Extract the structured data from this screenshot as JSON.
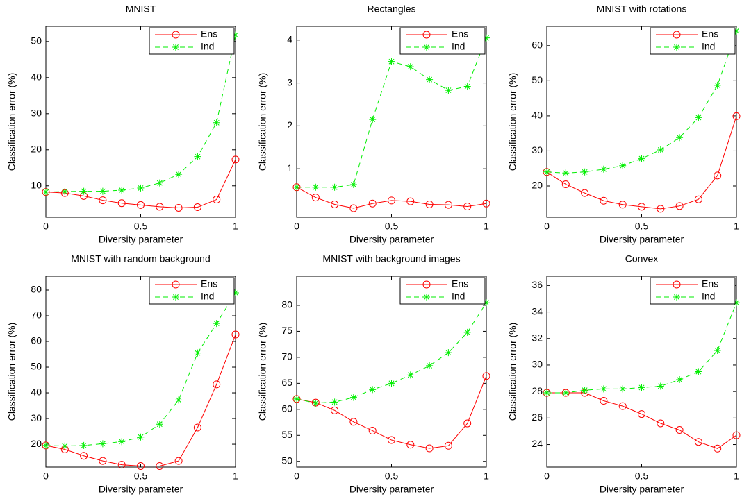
{
  "chart_data": [
    {
      "type": "line",
      "title": "MNIST",
      "xlabel": "Diversity parameter",
      "ylabel": "Classification error (%)",
      "x": [
        0,
        0.1,
        0.2,
        0.3,
        0.4,
        0.5,
        0.6,
        0.7,
        0.8,
        0.9,
        1
      ],
      "xlim": [
        0,
        1
      ],
      "xticks": [
        0,
        0.5,
        1
      ],
      "ylim": [
        1.3,
        54.2
      ],
      "yticks": [
        10,
        20,
        30,
        40,
        50
      ],
      "legend": "upper right",
      "series": [
        {
          "name": "Ens",
          "color": "#ff0000",
          "line_style": "solid",
          "marker": "circle",
          "values": [
            8.3,
            8.0,
            7.2,
            6.0,
            5.2,
            4.7,
            4.2,
            3.9,
            4.1,
            6.2,
            17.3
          ]
        },
        {
          "name": "Ind",
          "color": "#00ee00",
          "line_style": "dashed",
          "marker": "star",
          "values": [
            8.3,
            8.4,
            8.5,
            8.5,
            8.8,
            9.4,
            10.8,
            13.2,
            18.1,
            27.5,
            51.8
          ]
        }
      ]
    },
    {
      "type": "line",
      "title": "Rectangles",
      "xlabel": "Diversity parameter",
      "ylabel": "Classification error (%)",
      "x": [
        0,
        0.1,
        0.2,
        0.3,
        0.4,
        0.5,
        0.6,
        0.7,
        0.8,
        0.9,
        1
      ],
      "xlim": [
        0,
        1
      ],
      "xticks": [
        0,
        0.5,
        1
      ],
      "ylim": [
        -0.13,
        4.32
      ],
      "yticks": [
        1,
        2,
        3,
        4
      ],
      "legend": "upper right",
      "series": [
        {
          "name": "Ens",
          "color": "#ff0000",
          "line_style": "solid",
          "marker": "circle",
          "values": [
            0.57,
            0.33,
            0.17,
            0.08,
            0.19,
            0.26,
            0.24,
            0.17,
            0.16,
            0.12,
            0.19
          ]
        },
        {
          "name": "Ind",
          "color": "#00ee00",
          "line_style": "dashed",
          "marker": "star",
          "values": [
            0.57,
            0.57,
            0.57,
            0.63,
            2.15,
            3.5,
            3.38,
            3.08,
            2.83,
            2.92,
            4.05
          ]
        }
      ]
    },
    {
      "type": "line",
      "title": "MNIST with rotations",
      "xlabel": "Diversity parameter",
      "ylabel": "Classification error (%)",
      "x": [
        0,
        0.1,
        0.2,
        0.3,
        0.4,
        0.5,
        0.6,
        0.7,
        0.8,
        0.9,
        1
      ],
      "xlim": [
        0,
        1
      ],
      "xticks": [
        0,
        0.5,
        1
      ],
      "ylim": [
        11.1,
        65.5
      ],
      "yticks": [
        20,
        30,
        40,
        50,
        60
      ],
      "legend": "upper right",
      "series": [
        {
          "name": "Ens",
          "color": "#ff0000",
          "line_style": "solid",
          "marker": "circle",
          "values": [
            24,
            20.5,
            18,
            15.8,
            14.7,
            14.1,
            13.5,
            14.3,
            16.2,
            23,
            39.9
          ]
        },
        {
          "name": "Ind",
          "color": "#00ee00",
          "line_style": "dashed",
          "marker": "star",
          "values": [
            24,
            23.7,
            24,
            24.8,
            25.8,
            27.8,
            30.3,
            33.8,
            39.5,
            48.7,
            64.2
          ]
        }
      ]
    },
    {
      "type": "line",
      "title": "MNIST with random background",
      "xlabel": "Diversity parameter",
      "ylabel": "Classification error (%)",
      "x": [
        0,
        0.1,
        0.2,
        0.3,
        0.4,
        0.5,
        0.6,
        0.7,
        0.8,
        0.9,
        1
      ],
      "xlim": [
        0,
        1
      ],
      "xticks": [
        0,
        0.5,
        1
      ],
      "ylim": [
        11.1,
        85.4
      ],
      "yticks": [
        20,
        30,
        40,
        50,
        60,
        70,
        80
      ],
      "legend": "upper right",
      "series": [
        {
          "name": "Ens",
          "color": "#ff0000",
          "line_style": "solid",
          "marker": "circle",
          "values": [
            19.5,
            18,
            15.5,
            13.5,
            12,
            11.5,
            11.5,
            13.5,
            26.5,
            43.3,
            62.7
          ]
        },
        {
          "name": "Ind",
          "color": "#00ee00",
          "line_style": "dashed",
          "marker": "star",
          "values": [
            19.5,
            19.3,
            19.5,
            20.2,
            21,
            22.8,
            27.8,
            37.2,
            55.5,
            67,
            78.9
          ]
        }
      ]
    },
    {
      "type": "line",
      "title": "MNIST with background images",
      "xlabel": "Diversity parameter",
      "ylabel": "Classification error (%)",
      "x": [
        0,
        0.1,
        0.2,
        0.3,
        0.4,
        0.5,
        0.6,
        0.7,
        0.8,
        0.9,
        1
      ],
      "xlim": [
        0,
        1
      ],
      "xticks": [
        0,
        0.5,
        1
      ],
      "ylim": [
        48.9,
        85.6
      ],
      "yticks": [
        50,
        55,
        60,
        65,
        70,
        75,
        80
      ],
      "legend": "upper right",
      "series": [
        {
          "name": "Ens",
          "color": "#ff0000",
          "line_style": "solid",
          "marker": "circle",
          "values": [
            62,
            61.3,
            59.8,
            57.6,
            55.9,
            54.1,
            53.2,
            52.5,
            53,
            57.3,
            66.4
          ]
        },
        {
          "name": "Ind",
          "color": "#00ee00",
          "line_style": "dashed",
          "marker": "star",
          "values": [
            62,
            61.2,
            61.4,
            62.3,
            63.8,
            65,
            66.6,
            68.4,
            70.9,
            74.8,
            80.5
          ]
        }
      ]
    },
    {
      "type": "line",
      "title": "Convex",
      "xlabel": "Diversity parameter",
      "ylabel": "Classification error (%)",
      "x": [
        0,
        0.1,
        0.2,
        0.3,
        0.4,
        0.5,
        0.6,
        0.7,
        0.8,
        0.9,
        1
      ],
      "xlim": [
        0,
        1
      ],
      "xticks": [
        0,
        0.5,
        1
      ],
      "ylim": [
        22.3,
        36.7
      ],
      "yticks": [
        24,
        26,
        28,
        30,
        32,
        34,
        36
      ],
      "legend": "upper right",
      "series": [
        {
          "name": "Ens",
          "color": "#ff0000",
          "line_style": "solid",
          "marker": "circle",
          "values": [
            27.9,
            27.9,
            27.9,
            27.3,
            26.9,
            26.3,
            25.6,
            25.1,
            24.2,
            23.7,
            24.7
          ]
        },
        {
          "name": "Ind",
          "color": "#00ee00",
          "line_style": "dashed",
          "marker": "star",
          "values": [
            27.9,
            27.9,
            28.1,
            28.2,
            28.2,
            28.3,
            28.4,
            28.9,
            29.5,
            31.1,
            34.7
          ]
        }
      ]
    }
  ]
}
